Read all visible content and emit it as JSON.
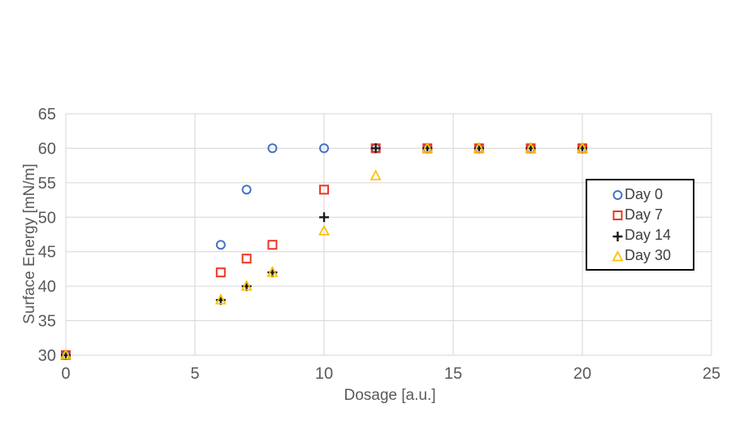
{
  "chart_data": {
    "type": "scatter",
    "title": "",
    "xlabel": "Dosage [a.u.]",
    "ylabel": "Surface Energy [mN/m]",
    "xlim": [
      0,
      25
    ],
    "ylim": [
      30,
      65
    ],
    "x_ticks": [
      "0",
      "5",
      "10",
      "15",
      "20",
      "25"
    ],
    "y_ticks": [
      "30",
      "35",
      "40",
      "45",
      "50",
      "55",
      "60",
      "65"
    ],
    "grid": true,
    "legend_position": "inside-right",
    "series": [
      {
        "name": "Day 0",
        "marker": "circle",
        "color": "#4472C4",
        "x": [
          0,
          6,
          7,
          8,
          10,
          12,
          14,
          16,
          18,
          20
        ],
        "y": [
          30,
          46,
          54,
          60,
          60,
          60,
          60,
          60,
          60,
          60
        ]
      },
      {
        "name": "Day 7",
        "marker": "square",
        "color": "#EE3423",
        "x": [
          0,
          6,
          7,
          8,
          10,
          12,
          14,
          16,
          18,
          20
        ],
        "y": [
          30,
          42,
          44,
          46,
          54,
          60,
          60,
          60,
          60,
          60
        ]
      },
      {
        "name": "Day 14",
        "marker": "plus",
        "color": "#1A1A1A",
        "x": [
          0,
          6,
          7,
          8,
          10,
          12,
          14,
          16,
          18,
          20
        ],
        "y": [
          30,
          38,
          40,
          42,
          50,
          60,
          60,
          60,
          60,
          60
        ]
      },
      {
        "name": "Day 30",
        "marker": "triangle",
        "color": "#FFC000",
        "x": [
          0,
          6,
          7,
          8,
          10,
          12,
          14,
          16,
          18,
          20
        ],
        "y": [
          30,
          38,
          40,
          42,
          48,
          56,
          60,
          60,
          60,
          60
        ]
      }
    ]
  },
  "style": {
    "background": "#ffffff",
    "gridline_color": "#d6d6d6",
    "tick_label_color": "#595959",
    "axis_title_color": "#595959",
    "legend_text_color": "#404040",
    "legend_border_color": "#000000"
  }
}
